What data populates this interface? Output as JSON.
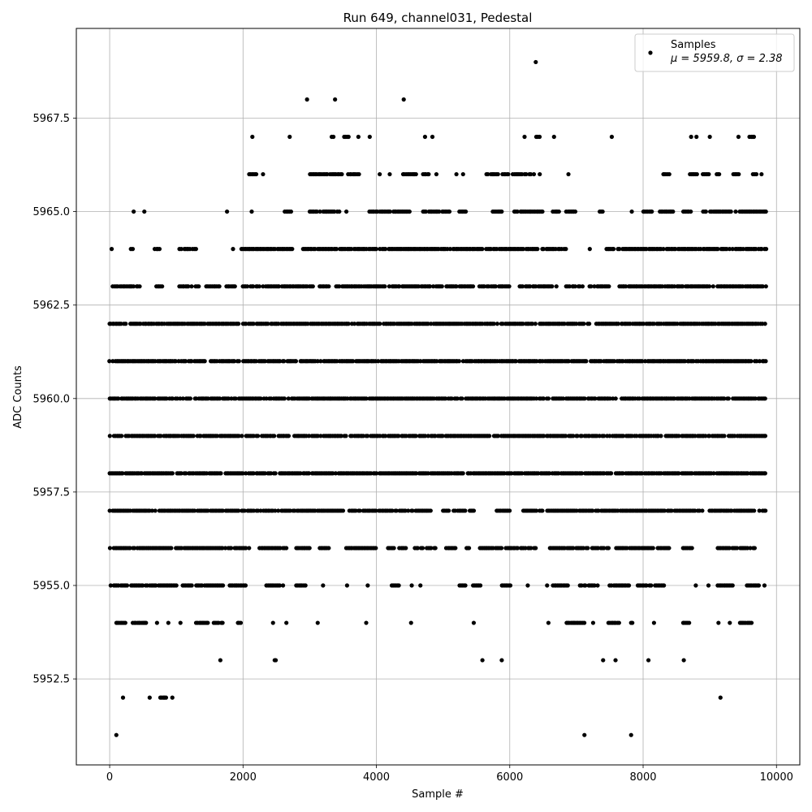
{
  "chart_data": {
    "type": "scatter",
    "title": "Run 649, channel031, Pedestal",
    "xlabel": "Sample #",
    "ylabel": "ADC Counts",
    "xlim": [
      -500,
      10350
    ],
    "ylim": [
      5950.2,
      5969.9
    ],
    "xticks": [
      0,
      2000,
      4000,
      6000,
      8000,
      10000
    ],
    "xtick_labels": [
      "0",
      "2000",
      "4000",
      "6000",
      "8000",
      "10000"
    ],
    "yticks": [
      5952.5,
      5955.0,
      5957.5,
      5960.0,
      5962.5,
      5965.0,
      5967.5
    ],
    "ytick_labels": [
      "5952.5",
      "5955.0",
      "5957.5",
      "5960.0",
      "5962.5",
      "5965.0",
      "5967.5"
    ],
    "grid": true,
    "legend": {
      "placement": "top-right",
      "series_name": "Samples",
      "stats_line": "μ = 5959.8, σ = 2.38"
    },
    "marker_color": "#000000",
    "n_samples": 9850,
    "band_ranges": {
      "5951": [
        [
          100,
          100
        ],
        [
          7120,
          7120
        ],
        [
          7820,
          7820
        ]
      ],
      "5952": [
        [
          200,
          200
        ],
        [
          600,
          600
        ],
        [
          760,
          860
        ],
        [
          940,
          940
        ],
        [
          9160,
          9160
        ]
      ],
      "5953": [
        [
          1660,
          1660
        ],
        [
          2470,
          2500
        ],
        [
          5590,
          5590
        ],
        [
          5880,
          5880
        ],
        [
          7400,
          7400
        ],
        [
          7590,
          7600
        ],
        [
          8080,
          8080
        ],
        [
          8610,
          8610
        ]
      ],
      "5954": [
        [
          100,
          250
        ],
        [
          350,
          550
        ],
        [
          710,
          710
        ],
        [
          880,
          880
        ],
        [
          1060,
          1080
        ],
        [
          1300,
          1700
        ],
        [
          1920,
          1980
        ],
        [
          2450,
          2450
        ],
        [
          2650,
          2650
        ],
        [
          3120,
          3120
        ],
        [
          3850,
          3870
        ],
        [
          4520,
          4520
        ],
        [
          5460,
          5460
        ],
        [
          6580,
          6580
        ],
        [
          6850,
          7120
        ],
        [
          7250,
          7250
        ],
        [
          7480,
          7650
        ],
        [
          7820,
          7850
        ],
        [
          8160,
          8180
        ],
        [
          8600,
          8690
        ],
        [
          9130,
          9130
        ],
        [
          9300,
          9300
        ],
        [
          9450,
          9630
        ]
      ],
      "5955": [
        [
          20,
          280
        ],
        [
          320,
          1030
        ],
        [
          1100,
          1700
        ],
        [
          1800,
          2050
        ],
        [
          2350,
          2550
        ],
        [
          2600,
          2600
        ],
        [
          2800,
          2950
        ],
        [
          3200,
          3200
        ],
        [
          3560,
          3560
        ],
        [
          3870,
          3870
        ],
        [
          4230,
          4350
        ],
        [
          4530,
          4530
        ],
        [
          4660,
          4660
        ],
        [
          5250,
          5350
        ],
        [
          5450,
          5580
        ],
        [
          5880,
          6030
        ],
        [
          6270,
          6270
        ],
        [
          6560,
          6560
        ],
        [
          6650,
          6880
        ],
        [
          7050,
          7320
        ],
        [
          7500,
          7800
        ],
        [
          7900,
          8120
        ],
        [
          8180,
          8330
        ],
        [
          8790,
          8790
        ],
        [
          8980,
          8980
        ],
        [
          9120,
          9350
        ],
        [
          9560,
          9750
        ],
        [
          9820,
          9820
        ]
      ],
      "5956": [
        [
          0,
          2100
        ],
        [
          2250,
          2650
        ],
        [
          2800,
          3000
        ],
        [
          3150,
          3300
        ],
        [
          3550,
          4000
        ],
        [
          4150,
          4450
        ],
        [
          4580,
          4900
        ],
        [
          5050,
          5200
        ],
        [
          5350,
          5400
        ],
        [
          5550,
          6400
        ],
        [
          6600,
          7500
        ],
        [
          7600,
          8400
        ],
        [
          8600,
          8750
        ],
        [
          9100,
          9700
        ]
      ],
      "5957": [
        [
          0,
          3500
        ],
        [
          3600,
          4850
        ],
        [
          5000,
          5500
        ],
        [
          5800,
          6000
        ],
        [
          6200,
          6400
        ],
        [
          6450,
          8900
        ],
        [
          9000,
          9850
        ]
      ],
      "5958": [
        [
          0,
          9850
        ]
      ],
      "5959": [
        [
          0,
          9850
        ]
      ],
      "5960": [
        [
          0,
          9850
        ]
      ],
      "5961": [
        [
          0,
          9850
        ]
      ],
      "5962": [
        [
          0,
          7200
        ],
        [
          7300,
          9850
        ]
      ],
      "5963": [
        [
          50,
          450
        ],
        [
          700,
          800
        ],
        [
          1050,
          1350
        ],
        [
          1450,
          1650
        ],
        [
          1750,
          1900
        ],
        [
          2000,
          2250
        ],
        [
          2300,
          3050
        ],
        [
          3150,
          3300
        ],
        [
          3400,
          5000
        ],
        [
          5050,
          5450
        ],
        [
          5550,
          6000
        ],
        [
          6150,
          6700
        ],
        [
          6850,
          7100
        ],
        [
          7200,
          7500
        ],
        [
          7650,
          9000
        ],
        [
          9050,
          9850
        ]
      ],
      "5964": [
        [
          30,
          30
        ],
        [
          320,
          360
        ],
        [
          680,
          760
        ],
        [
          1050,
          1300
        ],
        [
          1850,
          1850
        ],
        [
          1980,
          2100
        ],
        [
          2100,
          2750
        ],
        [
          2900,
          4000
        ],
        [
          4050,
          5600
        ],
        [
          5650,
          6850
        ],
        [
          7200,
          7200
        ],
        [
          7450,
          9850
        ]
      ],
      "5965": [
        [
          360,
          360
        ],
        [
          520,
          520
        ],
        [
          1760,
          1760
        ],
        [
          2130,
          2130
        ],
        [
          2630,
          2720
        ],
        [
          3000,
          3450
        ],
        [
          3550,
          3550
        ],
        [
          3900,
          4500
        ],
        [
          4700,
          5100
        ],
        [
          5250,
          5350
        ],
        [
          5750,
          5900
        ],
        [
          6050,
          6500
        ],
        [
          6650,
          6750
        ],
        [
          6850,
          7000
        ],
        [
          7350,
          7400
        ],
        [
          7830,
          7830
        ],
        [
          8000,
          8150
        ],
        [
          8250,
          8450
        ],
        [
          8600,
          8720
        ],
        [
          8900,
          9400
        ],
        [
          9450,
          9850
        ]
      ],
      "5966": [
        [
          2090,
          2220
        ],
        [
          2300,
          2300
        ],
        [
          3000,
          3500
        ],
        [
          3580,
          3750
        ],
        [
          4050,
          4050
        ],
        [
          4200,
          4200
        ],
        [
          4400,
          4600
        ],
        [
          4700,
          4800
        ],
        [
          4900,
          4900
        ],
        [
          5200,
          5200
        ],
        [
          5300,
          5300
        ],
        [
          5650,
          6000
        ],
        [
          6050,
          6380
        ],
        [
          6450,
          6450
        ],
        [
          6880,
          6880
        ],
        [
          8300,
          8400
        ],
        [
          8700,
          8820
        ],
        [
          8900,
          9000
        ],
        [
          9100,
          9150
        ],
        [
          9350,
          9450
        ],
        [
          9650,
          9710
        ],
        [
          9780,
          9800
        ]
      ],
      "5967": [
        [
          2140,
          2140
        ],
        [
          2700,
          2700
        ],
        [
          3330,
          3360
        ],
        [
          3520,
          3600
        ],
        [
          3730,
          3730
        ],
        [
          3900,
          3900
        ],
        [
          4730,
          4740
        ],
        [
          4840,
          4840
        ],
        [
          6220,
          6240
        ],
        [
          6400,
          6450
        ],
        [
          6660,
          6680
        ],
        [
          7530,
          7530
        ],
        [
          8720,
          8720
        ],
        [
          8800,
          8800
        ],
        [
          9000,
          9000
        ],
        [
          9430,
          9430
        ],
        [
          9600,
          9670
        ]
      ],
      "5968": [
        [
          2960,
          2960
        ],
        [
          3380,
          3380
        ],
        [
          4410,
          4410
        ]
      ],
      "5969": [
        [
          6390,
          6390
        ]
      ]
    }
  }
}
